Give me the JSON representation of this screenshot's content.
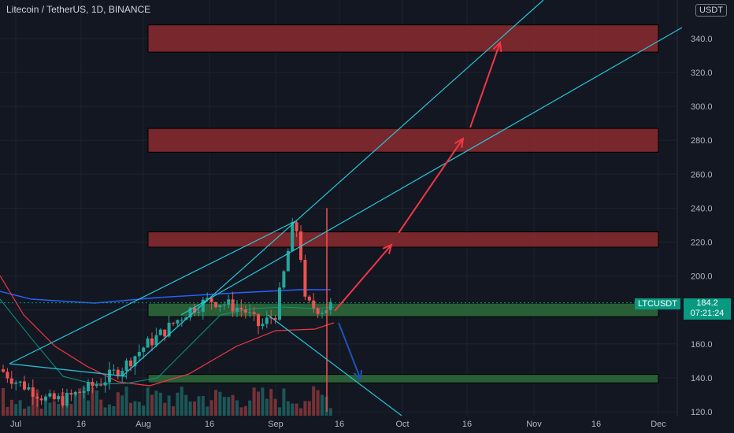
{
  "header": {
    "title": "Litecoin / TetherUS, 1D, BINANCE",
    "currency_badge": "USDT"
  },
  "price_label": {
    "symbol": "LTCUSDT",
    "price": "184.2",
    "countdown": "07:21:24"
  },
  "colors": {
    "background": "#131722",
    "bull": "#26a69a",
    "bear": "#ef5350",
    "trendline": "#26c6da",
    "arrow_up": "#f23645",
    "arrow_down": "#1e53b5",
    "resistance_zone": "#8b2a2e",
    "support_zone": "#2e6b3a"
  },
  "chart_data": {
    "type": "candlestick",
    "x_ticks": [
      "Jul",
      "16",
      "Aug",
      "16",
      "Sep",
      "16",
      "Oct",
      "16",
      "Nov",
      "16",
      "Dec"
    ],
    "y_ticks": [
      "120.0",
      "140.0",
      "160.0",
      "180.0",
      "200.0",
      "220.0",
      "240.0",
      "260.0",
      "280.0",
      "300.0",
      "320.0",
      "340.0"
    ],
    "ylim": [
      118,
      360
    ],
    "current_price": 184.2,
    "resistance_zones": [
      [
        217,
        226
      ],
      [
        273,
        287
      ],
      [
        332,
        348
      ]
    ],
    "support_zones": [
      [
        176,
        184
      ],
      [
        137,
        142
      ]
    ],
    "annotations": [
      "trendlines",
      "projected up-arrows",
      "projected down-arrow"
    ]
  }
}
